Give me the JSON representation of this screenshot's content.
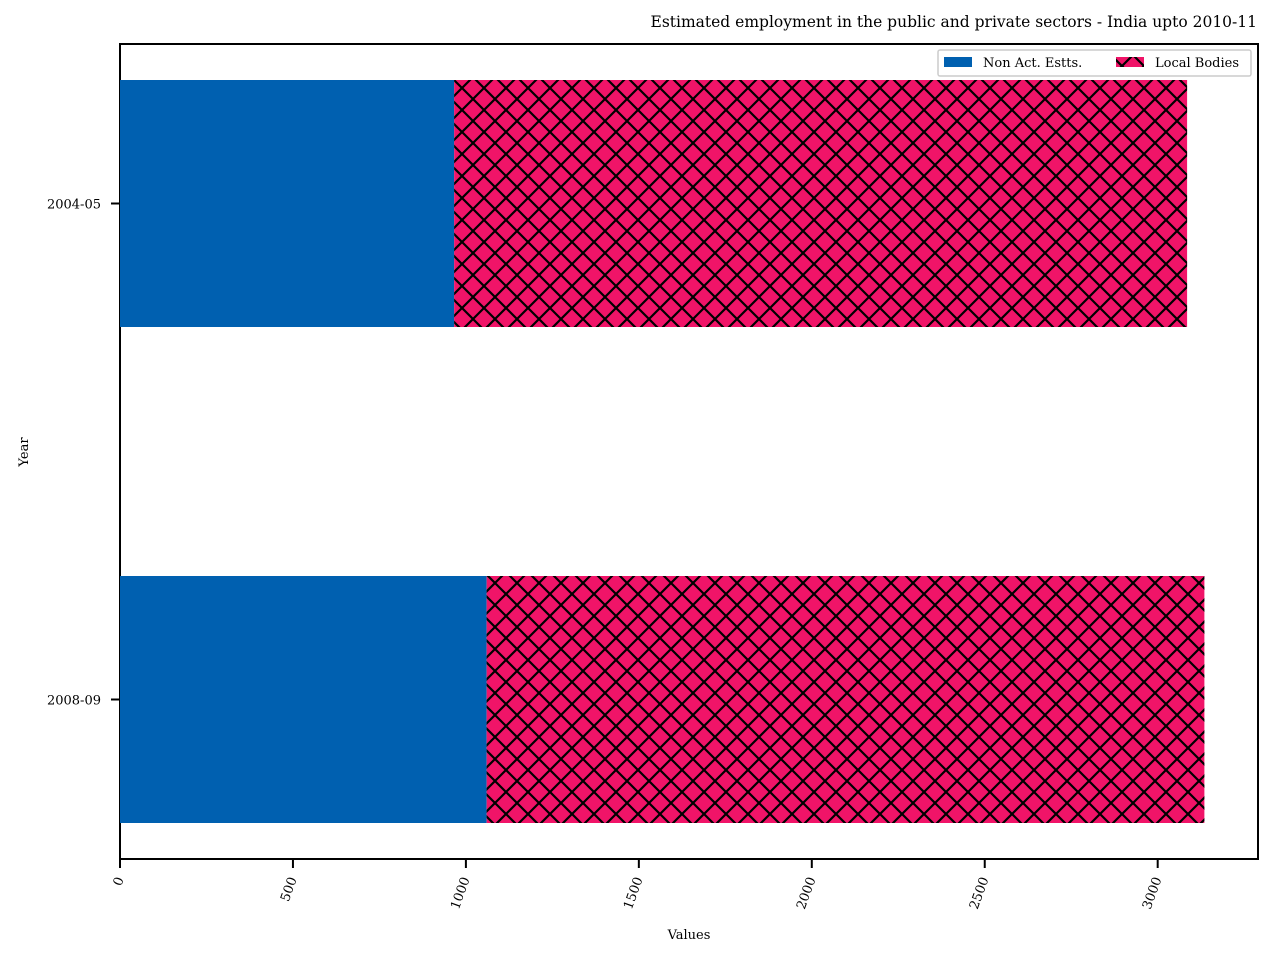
{
  "chart_data": {
    "type": "bar",
    "orientation": "horizontal",
    "stacked": true,
    "title": "Estimated employment in the public and private sectors - India upto 2010-11",
    "xlabel": "Values",
    "ylabel": "Year",
    "categories": [
      "2004-05",
      "2008-09"
    ],
    "series": [
      {
        "name": "Non Act. Estts.",
        "values": [
          966,
          1060
        ],
        "color": "#0060b0",
        "pattern": "solid"
      },
      {
        "name": "Local Bodies",
        "values": [
          2119,
          2075
        ],
        "color": "#f01468",
        "pattern": "crosshatch"
      }
    ],
    "xlim": [
      0,
      3290
    ],
    "xticks": [
      0,
      500,
      1000,
      1500,
      2000,
      2500,
      3000
    ],
    "xtick_rotation": -70,
    "grid": false,
    "legend_position": "top-right",
    "legend_columns": 2
  }
}
